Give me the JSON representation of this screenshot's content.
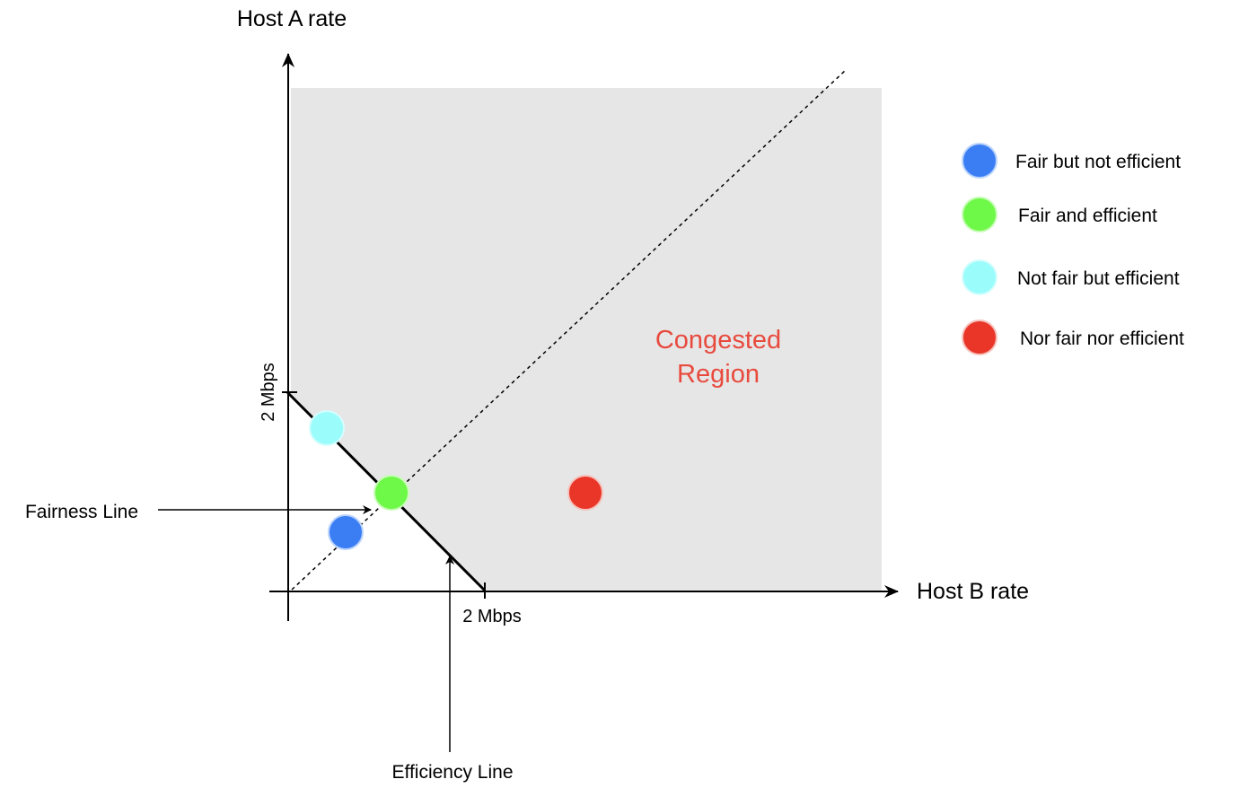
{
  "axes": {
    "y_label": "Host A rate",
    "x_label": "Host B rate",
    "y_tick": "2 Mbps",
    "x_tick": "2 Mbps"
  },
  "region": {
    "line1": "Congested",
    "line2": "Region",
    "text_color": "#e84a3e",
    "fill_color": "#e6e6e6"
  },
  "callouts": {
    "fairness": "Fairness Line",
    "efficiency": "Efficiency Line"
  },
  "points": [
    {
      "name": "fair-but-not-efficient",
      "color": "#3b7ef4"
    },
    {
      "name": "fair-and-efficient",
      "color": "#6ef848"
    },
    {
      "name": "not-fair-but-efficient",
      "color": "#9bfcfc"
    },
    {
      "name": "nor-fair-nor-efficient",
      "color": "#e93628"
    }
  ],
  "legend": [
    {
      "label": "Fair but not efficient",
      "color": "#3b7ef4"
    },
    {
      "label": "Fair and efficient",
      "color": "#6ef848"
    },
    {
      "label": "Not fair but efficient",
      "color": "#9bfcfc"
    },
    {
      "label": "Nor fair nor efficient",
      "color": "#e93628"
    }
  ]
}
